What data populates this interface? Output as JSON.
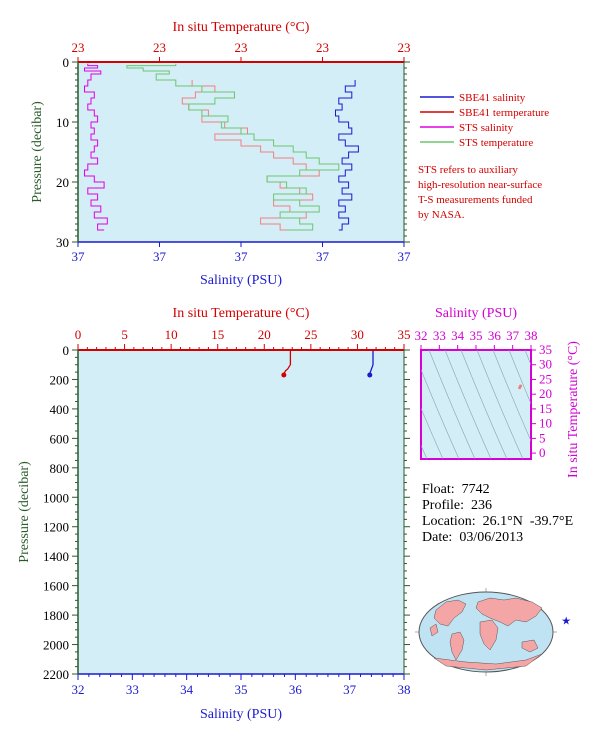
{
  "colors": {
    "temperature": "#d40000",
    "salinity": "#1a1ad0",
    "sts_salinity": "#e000e0",
    "sts_temperature": "#6cc66c",
    "sbe41_temperature_line": "#f08080",
    "pressure_axis": "#2a5a2a",
    "plot_bg": "#d4eef8",
    "inset_border": "#d400d4"
  },
  "chart_data": [
    {
      "type": "line",
      "title": "",
      "x_top_label": "In situ Temperature (°C)",
      "x_top_ticks": [
        "23",
        "23",
        "23",
        "23",
        "23"
      ],
      "x_bottom_label": "Salinity (PSU)",
      "x_bottom_ticks": [
        "37",
        "37",
        "37",
        "37",
        "37"
      ],
      "ylabel": "Pressure (decibar)",
      "ylim": [
        30,
        0
      ],
      "y_ticks": [
        0,
        10,
        20,
        30
      ],
      "legend": {
        "placement": "right",
        "entries": [
          "SBE41 salinity",
          "SBE41 termperature",
          "STS salinity",
          "STS temperature"
        ]
      },
      "note": [
        "STS refers to auxiliary",
        "high-resolution near-surface",
        "T-S measurements funded",
        "by NASA."
      ],
      "series": [
        {
          "name": "SBE41 salinity",
          "pressure": [
            3,
            4,
            5,
            6,
            7,
            8,
            9,
            10,
            11,
            12,
            13,
            14,
            15,
            16,
            17,
            18,
            19,
            20,
            21,
            22,
            23,
            24,
            25,
            26,
            27,
            28
          ],
          "x_fraction": [
            0.85,
            0.82,
            0.84,
            0.8,
            0.81,
            0.79,
            0.8,
            0.83,
            0.84,
            0.8,
            0.82,
            0.86,
            0.83,
            0.81,
            0.84,
            0.82,
            0.8,
            0.83,
            0.81,
            0.84,
            0.8,
            0.82,
            0.8,
            0.83,
            0.81,
            0.8
          ]
        },
        {
          "name": "SBE41 termperature",
          "pressure": [
            3,
            4,
            5,
            6,
            7,
            8,
            9,
            10,
            11,
            12,
            13,
            14,
            15,
            16,
            17,
            18,
            19,
            20,
            21,
            22,
            23,
            24,
            25,
            26,
            27,
            28
          ],
          "x_fraction": [
            0.35,
            0.42,
            0.36,
            0.32,
            0.34,
            0.4,
            0.38,
            0.45,
            0.52,
            0.42,
            0.5,
            0.56,
            0.6,
            0.66,
            0.7,
            0.74,
            0.58,
            0.62,
            0.68,
            0.72,
            0.6,
            0.65,
            0.7,
            0.56,
            0.62,
            0.66
          ]
        },
        {
          "name": "STS salinity",
          "pressure": [
            0.3,
            0.6,
            1,
            1.5,
            2,
            3,
            4,
            5,
            6,
            7,
            8,
            9,
            10,
            11,
            12,
            13,
            14,
            15,
            16,
            17,
            18,
            19,
            20,
            21,
            22,
            23,
            24,
            25,
            26,
            27,
            28
          ],
          "x_fraction": [
            0.03,
            0.06,
            0.02,
            0.07,
            0.04,
            0.03,
            0.02,
            0.05,
            0.04,
            0.03,
            0.05,
            0.06,
            0.04,
            0.05,
            0.04,
            0.06,
            0.05,
            0.04,
            0.06,
            0.03,
            0.02,
            0.05,
            0.08,
            0.03,
            0.06,
            0.04,
            0.07,
            0.05,
            0.09,
            0.06,
            0.08
          ]
        },
        {
          "name": "STS temperature",
          "pressure": [
            0.3,
            0.6,
            1,
            1.5,
            2,
            3,
            4,
            5,
            6,
            7,
            8,
            9,
            10,
            11,
            12,
            13,
            14,
            15,
            16,
            17,
            18,
            19,
            20,
            21,
            22,
            23,
            24,
            25,
            26,
            27,
            28
          ],
          "x_fraction": [
            0.3,
            0.15,
            0.2,
            0.28,
            0.24,
            0.3,
            0.38,
            0.48,
            0.42,
            0.34,
            0.38,
            0.46,
            0.44,
            0.5,
            0.54,
            0.6,
            0.66,
            0.7,
            0.74,
            0.8,
            0.68,
            0.58,
            0.64,
            0.7,
            0.6,
            0.68,
            0.74,
            0.62,
            0.68,
            0.72,
            0.64
          ]
        }
      ]
    },
    {
      "type": "line",
      "title": "",
      "x_top_label": "In situ Temperature (°C)",
      "x_top_ticks": [
        0,
        5,
        10,
        15,
        20,
        25,
        30,
        35
      ],
      "x_top_range": [
        0,
        35
      ],
      "x_bottom_label": "Salinity (PSU)",
      "x_bottom_ticks": [
        32,
        33,
        34,
        35,
        36,
        37,
        38
      ],
      "x_bottom_range": [
        32,
        38
      ],
      "ylabel": "Pressure (decibar)",
      "ylim": [
        2200,
        0
      ],
      "y_ticks": [
        0,
        200,
        400,
        600,
        800,
        1000,
        1200,
        1400,
        1600,
        1800,
        2000,
        2200
      ],
      "series": [
        {
          "name": "temperature",
          "pressure": [
            0,
            20,
            40,
            60,
            80,
            100,
            110,
            120,
            130,
            140,
            150,
            160,
            170
          ],
          "values": [
            22.8,
            22.8,
            22.8,
            22.8,
            22.8,
            22.8,
            22.7,
            22.6,
            22.5,
            22.3,
            22.2,
            22.1,
            22.1
          ]
        },
        {
          "name": "salinity",
          "pressure": [
            0,
            20,
            40,
            60,
            80,
            100,
            110,
            120,
            130,
            140,
            150,
            160,
            170
          ],
          "values": [
            37.43,
            37.43,
            37.43,
            37.43,
            37.43,
            37.43,
            37.42,
            37.41,
            37.4,
            37.39,
            37.38,
            37.37,
            37.37
          ]
        }
      ]
    },
    {
      "type": "scatter",
      "title": "",
      "xlabel": "Salinity (PSU)",
      "x_ticks": [
        32,
        33,
        34,
        35,
        36,
        37,
        38
      ],
      "xlim": [
        32,
        38
      ],
      "ylabel": "In situ Temperature (°C)",
      "y_ticks": [
        0,
        5,
        10,
        15,
        20,
        25,
        30,
        35
      ],
      "ylim": [
        -2,
        35
      ],
      "contours": "density",
      "points": [
        {
          "x": 37.43,
          "y": 22.8
        },
        {
          "x": 37.38,
          "y": 22.2
        }
      ]
    }
  ],
  "float_info": {
    "float_label": "Float:",
    "float": "7742",
    "profile_label": "Profile:",
    "profile": "236",
    "location_label": "Location:",
    "location": "26.1°N  -39.7°E",
    "date_label": "Date:",
    "date": "03/06/2013"
  },
  "map": {
    "marker_icon": "star-icon",
    "marker_lat": 26.1,
    "marker_lon": -39.7
  }
}
